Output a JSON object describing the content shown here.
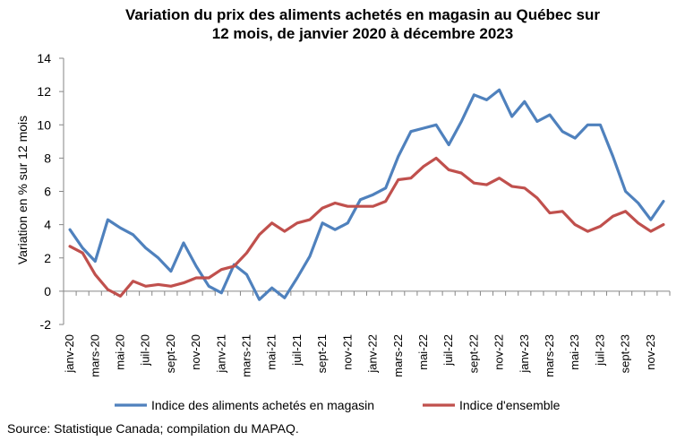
{
  "chart_data": {
    "type": "line",
    "title_line1": "Variation du prix des aliments achetés en magasin au Québec sur",
    "title_line2": "12 mois, de janvier 2020 à décembre 2023",
    "ylabel": "Variation en % sur 12 mois",
    "xlabel": "",
    "ylim": [
      -2,
      14
    ],
    "yticks": [
      -2,
      0,
      2,
      4,
      6,
      8,
      10,
      12,
      14
    ],
    "ytick_labels": [
      "-2",
      "0",
      "2",
      "4",
      "6",
      "8",
      "10",
      "12",
      "14"
    ],
    "grid": false,
    "legend_position": "bottom",
    "x": [
      "janv-20",
      "févr-20",
      "mars-20",
      "avr-20",
      "mai-20",
      "juin-20",
      "juil-20",
      "août-20",
      "sept-20",
      "oct-20",
      "nov-20",
      "déc-20",
      "janv-21",
      "févr-21",
      "mars-21",
      "avr-21",
      "mai-21",
      "juin-21",
      "juil-21",
      "août-21",
      "sept-21",
      "oct-21",
      "nov-21",
      "déc-21",
      "janv-22",
      "févr-22",
      "mars-22",
      "avr-22",
      "mai-22",
      "juin-22",
      "juil-22",
      "août-22",
      "sept-22",
      "oct-22",
      "nov-22",
      "déc-22",
      "janv-23",
      "févr-23",
      "mars-23",
      "avr-23",
      "mai-23",
      "juin-23",
      "juil-23",
      "août-23",
      "sept-23",
      "oct-23",
      "nov-23",
      "déc-23"
    ],
    "xtick_labels": [
      "janv-20",
      "mars-20",
      "mai-20",
      "juil-20",
      "sept-20",
      "nov-20",
      "janv-21",
      "mars-21",
      "mai-21",
      "juil-21",
      "sept-21",
      "nov-21",
      "janv-22",
      "mars-22",
      "mai-22",
      "juil-22",
      "sept-22",
      "nov-22",
      "janv-23",
      "mars-23",
      "mai-23",
      "juil-23",
      "sept-23",
      "nov-23"
    ],
    "series": [
      {
        "name": "Indice des aliments achetés en magasin",
        "color": "#4f81bd",
        "values": [
          3.7,
          2.6,
          1.8,
          4.3,
          3.8,
          3.4,
          2.6,
          2.0,
          1.2,
          2.9,
          1.5,
          0.3,
          -0.1,
          1.6,
          1.0,
          -0.5,
          0.2,
          -0.4,
          0.8,
          2.1,
          4.1,
          3.7,
          4.1,
          5.5,
          5.8,
          6.2,
          8.1,
          9.6,
          9.8,
          10.0,
          8.8,
          10.2,
          11.8,
          11.5,
          12.1,
          10.5,
          11.4,
          10.2,
          10.6,
          9.6,
          9.2,
          10.0,
          10.0,
          8.1,
          6.0,
          5.3,
          4.3,
          5.4
        ]
      },
      {
        "name": "Indice d'ensemble",
        "color": "#c0504d",
        "values": [
          2.7,
          2.3,
          1.0,
          0.1,
          -0.3,
          0.6,
          0.3,
          0.4,
          0.3,
          0.5,
          0.8,
          0.8,
          1.3,
          1.5,
          2.3,
          3.4,
          4.1,
          3.6,
          4.1,
          4.3,
          5.0,
          5.3,
          5.1,
          5.1,
          5.1,
          5.4,
          6.7,
          6.8,
          7.5,
          8.0,
          7.3,
          7.1,
          6.5,
          6.4,
          6.8,
          6.3,
          6.2,
          5.6,
          4.7,
          4.8,
          4.0,
          3.6,
          3.9,
          4.5,
          4.8,
          4.1,
          3.6,
          4.0
        ]
      }
    ],
    "source": "Source: Statistique Canada; compilation du MAPAQ."
  }
}
